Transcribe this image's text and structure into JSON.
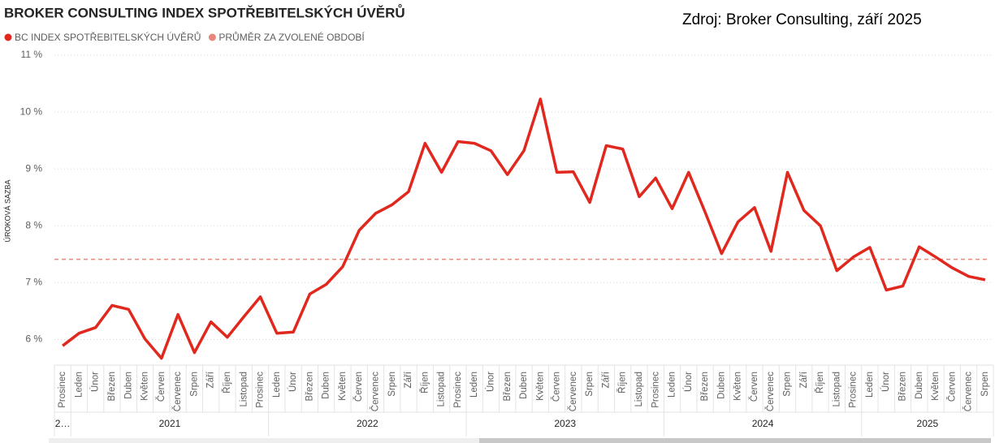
{
  "chart_data": {
    "type": "line",
    "title": "BROKER CONSULTING INDEX SPOTŘEBITELSKÝCH ÚVĚRŮ",
    "annotation": "Zdroj: Broker Consulting, září 2025",
    "y_label": "ÚROKOVÁ SAZBA",
    "categories": [
      "Prosinec",
      "Leden",
      "Únor",
      "Březen",
      "Duben",
      "Květen",
      "Červen",
      "Červenec",
      "Srpen",
      "Září",
      "Říjen",
      "Listopad",
      "Prosinec",
      "Leden",
      "Únor",
      "Březen",
      "Duben",
      "Květen",
      "Červen",
      "Červenec",
      "Srpen",
      "Září",
      "Říjen",
      "Listopad",
      "Prosinec",
      "Leden",
      "Únor",
      "Březen",
      "Duben",
      "Květen",
      "Červen",
      "Červenec",
      "Srpen",
      "Září",
      "Říjen",
      "Listopad",
      "Prosinec",
      "Leden",
      "Únor",
      "Březen",
      "Duben",
      "Květen",
      "Červen",
      "Červenec",
      "Srpen",
      "Září",
      "Říjen",
      "Listopad",
      "Prosinec",
      "Leden",
      "Únor",
      "Březen",
      "Duben",
      "Květen",
      "Červen",
      "Červenec",
      "Srpen"
    ],
    "years": [
      "2…",
      "2021",
      "2021",
      "2021",
      "2021",
      "2021",
      "2021",
      "2021",
      "2021",
      "2021",
      "2021",
      "2021",
      "2021",
      "2022",
      "2022",
      "2022",
      "2022",
      "2022",
      "2022",
      "2022",
      "2022",
      "2022",
      "2022",
      "2022",
      "2022",
      "2023",
      "2023",
      "2023",
      "2023",
      "2023",
      "2023",
      "2023",
      "2023",
      "2023",
      "2023",
      "2023",
      "2023",
      "2024",
      "2024",
      "2024",
      "2024",
      "2024",
      "2024",
      "2024",
      "2024",
      "2024",
      "2024",
      "2024",
      "2024",
      "2025",
      "2025",
      "2025",
      "2025",
      "2025",
      "2025",
      "2025",
      "2025"
    ],
    "series": [
      {
        "name": "BC INDEX SPOTŘEBITELSKÝCH ÚVĚRŮ",
        "color": "#e0281e",
        "values": [
          5.89,
          6.11,
          6.21,
          6.6,
          6.53,
          6.01,
          5.67,
          6.44,
          5.77,
          6.31,
          6.04,
          6.4,
          6.75,
          6.11,
          6.13,
          6.8,
          6.97,
          7.28,
          7.92,
          8.22,
          8.37,
          8.6,
          9.45,
          8.94,
          9.48,
          9.45,
          9.32,
          8.9,
          9.32,
          10.23,
          8.94,
          8.95,
          8.41,
          9.41,
          9.35,
          8.51,
          8.84,
          8.3,
          8.94,
          8.24,
          7.51,
          8.07,
          8.32,
          7.55,
          8.94,
          8.27,
          8.0,
          7.21,
          7.45,
          7.62,
          6.87,
          6.94,
          7.63,
          7.45,
          7.26,
          7.11,
          7.05
        ]
      }
    ],
    "reference_line": {
      "name": "PRŮMĚR ZA ZVOLENÉ OBDOBÍ",
      "color": "#e8887d",
      "value": 7.41
    },
    "ylim": [
      5.55,
      11
    ],
    "yticks": [
      {
        "value": 6,
        "label": "6 %"
      },
      {
        "value": 7,
        "label": "7 %"
      },
      {
        "value": 8,
        "label": "8 %"
      },
      {
        "value": 9,
        "label": "9 %"
      },
      {
        "value": 10,
        "label": "10 %"
      },
      {
        "value": 11,
        "label": "11 %"
      }
    ],
    "grid": true
  }
}
